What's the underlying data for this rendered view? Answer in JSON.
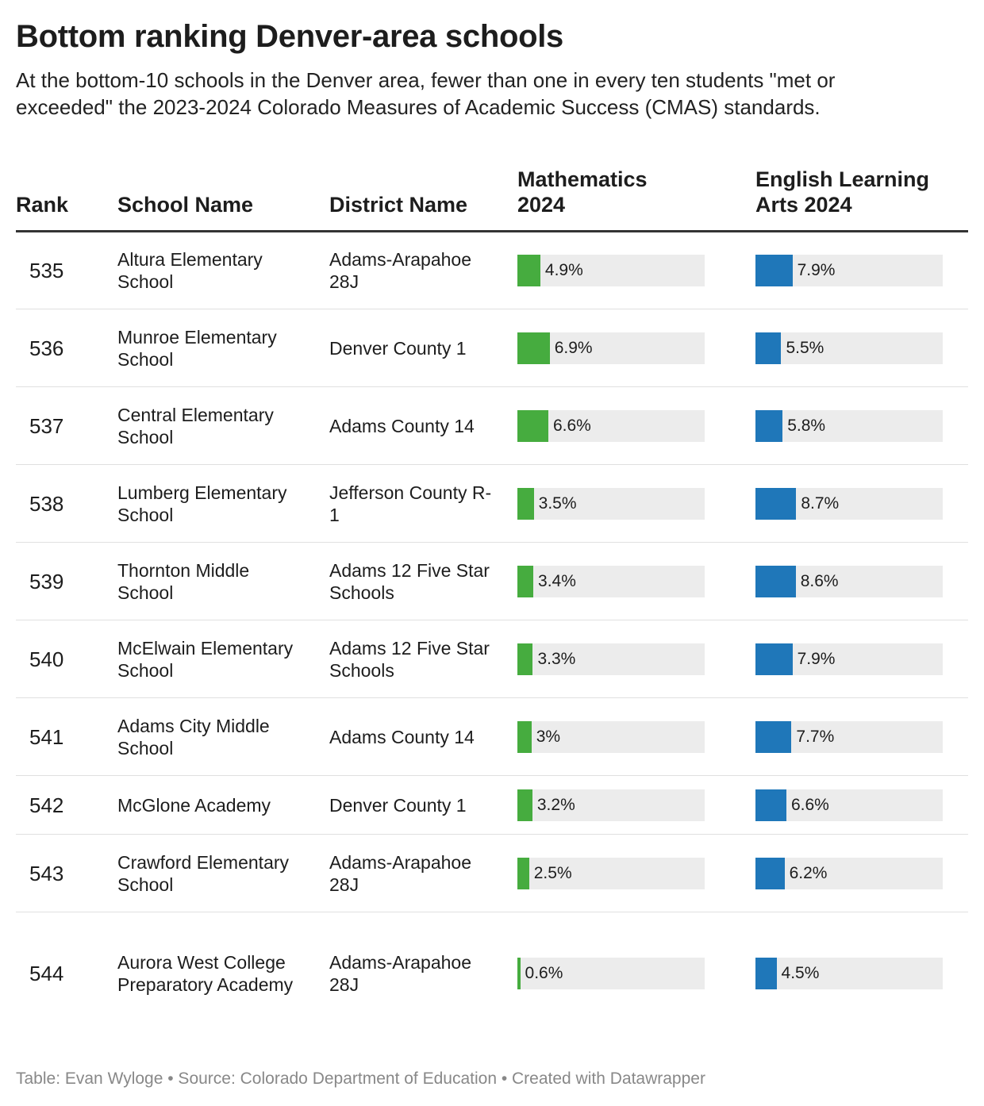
{
  "title": "Bottom ranking Denver-area schools",
  "subtitle": "At the bottom-10 schools in the Denver area, fewer than one in every ten students \"met or exceeded\" the 2023-2024 Colorado Measures of Academic Success (CMAS) standards.",
  "footer": "Table: Evan Wyloge • Source: Colorado Department of Education • Created with Datawrapper",
  "colors": {
    "math": "#46ac3f",
    "ela": "#1f77b9",
    "bar_bg": "#ececec"
  },
  "chart_data": {
    "type": "table",
    "bar_max": 40,
    "columns": [
      "Rank",
      "School Name",
      "District Name",
      "Mathematics 2024",
      "English Learning Arts 2024"
    ],
    "rows": [
      {
        "rank": "535",
        "school": "Altura Elementary School",
        "district": "Adams-Arapahoe 28J",
        "math": 4.9,
        "math_label": "4.9%",
        "ela": 7.9,
        "ela_label": "7.9%"
      },
      {
        "rank": "536",
        "school": "Munroe Elementary School",
        "district": "Denver County 1",
        "math": 6.9,
        "math_label": "6.9%",
        "ela": 5.5,
        "ela_label": "5.5%"
      },
      {
        "rank": "537",
        "school": "Central Elementary School",
        "district": "Adams County 14",
        "math": 6.6,
        "math_label": "6.6%",
        "ela": 5.8,
        "ela_label": "5.8%"
      },
      {
        "rank": "538",
        "school": "Lumberg Elementary School",
        "district": "Jefferson County R-1",
        "math": 3.5,
        "math_label": "3.5%",
        "ela": 8.7,
        "ela_label": "8.7%"
      },
      {
        "rank": "539",
        "school": "Thornton Middle School",
        "district": "Adams 12 Five Star Schools",
        "math": 3.4,
        "math_label": "3.4%",
        "ela": 8.6,
        "ela_label": "8.6%"
      },
      {
        "rank": "540",
        "school": "McElwain Elementary School",
        "district": "Adams 12 Five Star Schools",
        "math": 3.3,
        "math_label": "3.3%",
        "ela": 7.9,
        "ela_label": "7.9%"
      },
      {
        "rank": "541",
        "school": "Adams City Middle School",
        "district": "Adams County 14",
        "math": 3.0,
        "math_label": "3%",
        "ela": 7.7,
        "ela_label": "7.7%"
      },
      {
        "rank": "542",
        "school": "McGlone Academy",
        "district": "Denver County 1",
        "math": 3.2,
        "math_label": "3.2%",
        "ela": 6.6,
        "ela_label": "6.6%"
      },
      {
        "rank": "543",
        "school": "Crawford Elementary School",
        "district": "Adams-Arapahoe 28J",
        "math": 2.5,
        "math_label": "2.5%",
        "ela": 6.2,
        "ela_label": "6.2%"
      },
      {
        "rank": "544",
        "school": "Aurora West College Preparatory Academy",
        "district": "Adams-Arapahoe 28J",
        "math": 0.6,
        "math_label": "0.6%",
        "ela": 4.5,
        "ela_label": "4.5%"
      }
    ]
  }
}
